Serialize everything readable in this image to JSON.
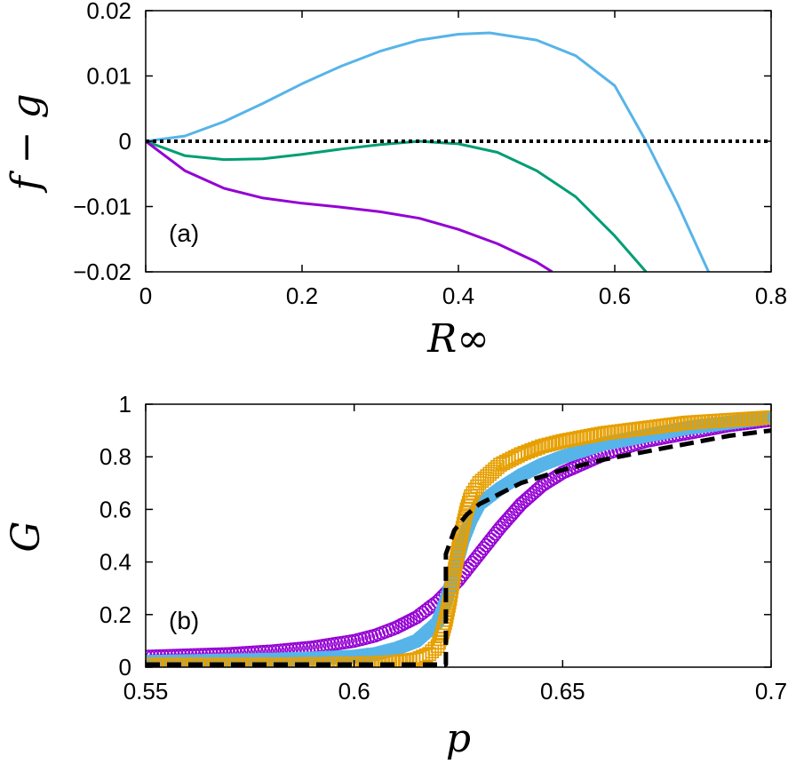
{
  "chart_data": [
    {
      "type": "line",
      "panel_label": "(a)",
      "xlabel": "R∞",
      "ylabel": "f − g",
      "xlim": [
        0,
        0.8
      ],
      "ylim": [
        -0.02,
        0.02
      ],
      "xticks": [
        "0",
        "0.2",
        "0.4",
        "0.6",
        "0.8"
      ],
      "yticks": [
        "−0.02",
        "−0.01",
        "0",
        "0.01",
        "0.02"
      ],
      "grid": false,
      "series": [
        {
          "color": "#56b4e9",
          "style": "solid",
          "x": [
            0,
            0.05,
            0.1,
            0.15,
            0.2,
            0.25,
            0.3,
            0.35,
            0.4,
            0.44,
            0.5,
            0.55,
            0.6,
            0.64,
            0.68,
            0.72
          ],
          "y": [
            0,
            0.0008,
            0.003,
            0.0058,
            0.0088,
            0.0115,
            0.0138,
            0.0155,
            0.0164,
            0.0166,
            0.0155,
            0.0131,
            0.0085,
            0.0,
            -0.0095,
            -0.02
          ]
        },
        {
          "color": "#009e73",
          "style": "solid",
          "x": [
            0,
            0.05,
            0.1,
            0.15,
            0.2,
            0.25,
            0.3,
            0.35,
            0.4,
            0.45,
            0.5,
            0.55,
            0.6,
            0.64
          ],
          "y": [
            0,
            -0.0022,
            -0.0028,
            -0.0027,
            -0.002,
            -0.0012,
            -0.0005,
            0.0,
            -0.0004,
            -0.0017,
            -0.0045,
            -0.0085,
            -0.0145,
            -0.02
          ]
        },
        {
          "color": "#9400d3",
          "style": "solid",
          "x": [
            0,
            0.05,
            0.1,
            0.15,
            0.2,
            0.25,
            0.3,
            0.35,
            0.4,
            0.45,
            0.5,
            0.52
          ],
          "y": [
            0,
            -0.0045,
            -0.0072,
            -0.0087,
            -0.0095,
            -0.0101,
            -0.0108,
            -0.0118,
            -0.0135,
            -0.0157,
            -0.0185,
            -0.02
          ]
        },
        {
          "color": "#000000",
          "style": "dotted",
          "x": [
            0,
            0.8
          ],
          "y": [
            0,
            0
          ]
        }
      ]
    },
    {
      "type": "scatter",
      "panel_label": "(b)",
      "xlabel": "p",
      "ylabel": "G",
      "xlim": [
        0.55,
        0.7
      ],
      "ylim": [
        0,
        1
      ],
      "xticks": [
        "0.55",
        "0.6",
        "0.65",
        "0.7"
      ],
      "yticks": [
        "0",
        "0.2",
        "0.4",
        "0.6",
        "0.8",
        "1"
      ],
      "grid": false,
      "series": [
        {
          "color": "#9400d3",
          "marker": "open-circle",
          "x": [
            0.55,
            0.56,
            0.57,
            0.58,
            0.59,
            0.6,
            0.605,
            0.61,
            0.615,
            0.62,
            0.625,
            0.63,
            0.635,
            0.64,
            0.645,
            0.65,
            0.66,
            0.67,
            0.68,
            0.69,
            0.7
          ],
          "y": [
            0.04,
            0.045,
            0.05,
            0.06,
            0.075,
            0.1,
            0.12,
            0.15,
            0.19,
            0.25,
            0.33,
            0.43,
            0.53,
            0.62,
            0.69,
            0.74,
            0.81,
            0.86,
            0.89,
            0.92,
            0.94
          ]
        },
        {
          "color": "#56b4e9",
          "marker": "filled-circle",
          "x": [
            0.55,
            0.56,
            0.57,
            0.58,
            0.59,
            0.6,
            0.605,
            0.61,
            0.615,
            0.62,
            0.622,
            0.624,
            0.626,
            0.628,
            0.63,
            0.635,
            0.64,
            0.645,
            0.65,
            0.66,
            0.67,
            0.68,
            0.69,
            0.7
          ],
          "y": [
            0.02,
            0.022,
            0.025,
            0.028,
            0.033,
            0.04,
            0.05,
            0.07,
            0.1,
            0.17,
            0.25,
            0.36,
            0.48,
            0.56,
            0.62,
            0.68,
            0.73,
            0.77,
            0.8,
            0.85,
            0.88,
            0.91,
            0.93,
            0.95
          ]
        },
        {
          "color": "#e69f00",
          "marker": "open-square",
          "x": [
            0.55,
            0.56,
            0.57,
            0.58,
            0.59,
            0.6,
            0.605,
            0.61,
            0.615,
            0.618,
            0.62,
            0.621,
            0.622,
            0.623,
            0.624,
            0.625,
            0.626,
            0.627,
            0.628,
            0.63,
            0.635,
            0.64,
            0.645,
            0.65,
            0.66,
            0.67,
            0.68,
            0.69,
            0.7
          ],
          "y": [
            0.01,
            0.01,
            0.01,
            0.01,
            0.012,
            0.014,
            0.016,
            0.02,
            0.03,
            0.05,
            0.08,
            0.12,
            0.18,
            0.26,
            0.36,
            0.45,
            0.53,
            0.6,
            0.65,
            0.7,
            0.77,
            0.81,
            0.84,
            0.86,
            0.89,
            0.91,
            0.93,
            0.94,
            0.95
          ]
        },
        {
          "color": "#000000",
          "style": "dashed",
          "x": [
            0.55,
            0.622,
            0.622,
            0.624,
            0.627,
            0.63,
            0.635,
            0.64,
            0.65,
            0.66,
            0.67,
            0.68,
            0.69,
            0.7
          ],
          "y": [
            0.01,
            0.01,
            0.43,
            0.52,
            0.58,
            0.62,
            0.66,
            0.7,
            0.75,
            0.79,
            0.82,
            0.85,
            0.88,
            0.9
          ]
        }
      ]
    }
  ]
}
